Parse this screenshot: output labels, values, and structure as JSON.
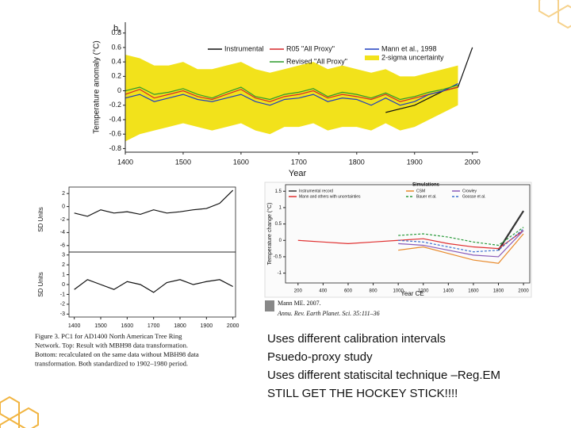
{
  "chart_data": [
    {
      "type": "line",
      "panel_label": "b,",
      "ylabel": "Temperature anomaly (°C)",
      "xlabel": "Year",
      "x": [
        1400,
        1425,
        1450,
        1475,
        1500,
        1525,
        1550,
        1575,
        1600,
        1625,
        1650,
        1675,
        1700,
        1725,
        1750,
        1775,
        1800,
        1825,
        1850,
        1875,
        1900,
        1925,
        1950,
        1975,
        2000
      ],
      "xlim": [
        1400,
        2010
      ],
      "xticks": [
        1400,
        1500,
        1600,
        1700,
        1800,
        1900,
        2000
      ],
      "ylim": [
        -0.85,
        0.95
      ],
      "yticks": [
        0.8,
        0.6,
        0.4,
        0.2,
        0,
        -0.2,
        -0.4,
        -0.6,
        -0.8
      ],
      "band": {
        "name": "2-sigma uncertainty",
        "color": "#f2e21b",
        "lower": [
          -0.7,
          -0.6,
          -0.55,
          -0.5,
          -0.45,
          -0.5,
          -0.55,
          -0.5,
          -0.45,
          -0.55,
          -0.6,
          -0.5,
          -0.5,
          -0.45,
          -0.55,
          -0.5,
          -0.5,
          -0.55,
          -0.45,
          -0.55,
          -0.5,
          -0.4,
          -0.3,
          -0.2,
          null
        ],
        "upper": [
          0.5,
          0.45,
          0.35,
          0.35,
          0.4,
          0.3,
          0.3,
          0.35,
          0.4,
          0.3,
          0.25,
          0.3,
          0.35,
          0.4,
          0.3,
          0.35,
          0.3,
          0.25,
          0.3,
          0.2,
          0.2,
          0.25,
          0.3,
          0.35,
          null
        ]
      },
      "series": [
        {
          "name": "Instrumental",
          "color": "#111111",
          "values": [
            null,
            null,
            null,
            null,
            null,
            null,
            null,
            null,
            null,
            null,
            null,
            null,
            null,
            null,
            null,
            null,
            null,
            null,
            -0.3,
            -0.25,
            -0.2,
            -0.1,
            0.0,
            0.05,
            0.6
          ]
        },
        {
          "name": "R05 \"All Proxy\"",
          "color": "#d62728",
          "values": [
            -0.05,
            0.02,
            -0.1,
            -0.05,
            0.0,
            -0.08,
            -0.12,
            -0.05,
            0.02,
            -0.1,
            -0.15,
            -0.08,
            -0.05,
            0.0,
            -0.1,
            -0.05,
            -0.08,
            -0.12,
            -0.05,
            -0.15,
            -0.1,
            -0.05,
            0.0,
            0.05,
            null
          ]
        },
        {
          "name": "Mann et al., 1998",
          "color": "#1f3fbf",
          "values": [
            -0.1,
            -0.05,
            -0.15,
            -0.1,
            -0.05,
            -0.12,
            -0.15,
            -0.1,
            -0.05,
            -0.15,
            -0.2,
            -0.12,
            -0.1,
            -0.05,
            -0.15,
            -0.1,
            -0.12,
            -0.2,
            -0.1,
            -0.2,
            -0.15,
            -0.05,
            0.0,
            0.1,
            null
          ]
        },
        {
          "name": "Revised \"All Proxy\"",
          "color": "#2c9a2c",
          "values": [
            0.0,
            0.05,
            -0.05,
            -0.02,
            0.03,
            -0.05,
            -0.1,
            -0.02,
            0.05,
            -0.08,
            -0.12,
            -0.05,
            -0.02,
            0.03,
            -0.08,
            -0.02,
            -0.05,
            -0.1,
            -0.03,
            -0.12,
            -0.08,
            -0.02,
            0.02,
            0.08,
            null
          ]
        }
      ]
    },
    {
      "type": "line",
      "ylabel": "SD Units",
      "x": [
        1400,
        1450,
        1500,
        1550,
        1600,
        1650,
        1700,
        1750,
        1800,
        1850,
        1900,
        1950,
        2000
      ],
      "xlim": [
        1380,
        2010
      ],
      "ylim": [
        -7,
        3
      ],
      "yticks": [
        2,
        0,
        -2,
        -4,
        -6
      ],
      "series": [
        {
          "color": "#111111",
          "values": [
            -1,
            -1.5,
            -0.5,
            -1,
            -0.8,
            -1.2,
            -0.5,
            -1,
            -0.8,
            -0.5,
            -0.3,
            0.5,
            2.5
          ]
        }
      ]
    },
    {
      "type": "line",
      "ylabel": "SD Units",
      "x": [
        1400,
        1450,
        1500,
        1550,
        1600,
        1650,
        1700,
        1750,
        1800,
        1850,
        1900,
        1950,
        2000
      ],
      "xlim": [
        1380,
        2010
      ],
      "xticks": [
        1400,
        1500,
        1600,
        1700,
        1800,
        1900,
        2000
      ],
      "ylim": [
        -3.3,
        3.3
      ],
      "yticks": [
        3,
        2,
        1,
        0,
        -1,
        -2,
        -3
      ],
      "series": [
        {
          "color": "#111111",
          "values": [
            -0.5,
            0.5,
            0,
            -0.5,
            0.3,
            0,
            -0.8,
            0.2,
            0.5,
            0,
            0.3,
            0.5,
            -0.2
          ]
        }
      ]
    },
    {
      "type": "line",
      "ylabel": "Temperature change (°C)",
      "xlabel": "Year CE",
      "legend_title": "Simulations",
      "x": [
        200,
        400,
        600,
        800,
        1000,
        1200,
        1400,
        1600,
        1800,
        2000
      ],
      "xlim": [
        100,
        2050
      ],
      "xticks": [
        200,
        400,
        600,
        800,
        1000,
        1200,
        1400,
        1600,
        1800,
        2000
      ],
      "ylim": [
        -1.3,
        1.7
      ],
      "yticks": [
        1.5,
        1,
        0.5,
        0,
        -0.5,
        -1
      ],
      "series": [
        {
          "name": "Instrumental record",
          "color": "#333333",
          "values": [
            null,
            null,
            null,
            null,
            null,
            null,
            null,
            null,
            -0.3,
            0.9
          ]
        },
        {
          "name": "Mann and others with uncertainties",
          "color": "#e03030",
          "values": [
            0.0,
            -0.05,
            -0.1,
            -0.05,
            0.0,
            0.05,
            -0.1,
            -0.2,
            -0.25,
            0.3
          ]
        },
        {
          "name": "CSM",
          "color": "#e8892a",
          "values": [
            null,
            null,
            null,
            null,
            -0.3,
            -0.2,
            -0.4,
            -0.6,
            -0.7,
            0.2
          ]
        },
        {
          "name": "Crowley",
          "color": "#8a5bb8",
          "values": [
            null,
            null,
            null,
            null,
            -0.1,
            -0.15,
            -0.3,
            -0.45,
            -0.5,
            0.3
          ]
        },
        {
          "name": "Bauer et al.",
          "color": "#2a9a3a",
          "dashed": true,
          "values": [
            null,
            null,
            null,
            null,
            0.15,
            0.2,
            0.1,
            -0.05,
            -0.15,
            0.4
          ]
        },
        {
          "name": "Goosse et al.",
          "color": "#3b6fd0",
          "dashed": true,
          "values": [
            null,
            null,
            null,
            null,
            0.0,
            -0.05,
            -0.2,
            -0.35,
            -0.3,
            0.35
          ]
        }
      ]
    }
  ],
  "caption_lines": [
    "Figure 3.  PC1 for AD1400 North American Tree Ring",
    "Network.  Top: Result with MBH98 data transformation.",
    "Bottom: recalculated on the same data without MBH98 data",
    "transformation.  Both standardized to 1902–1980 period."
  ],
  "citation": [
    "Mann ME. 2007.",
    "Annu. Rev. Earth Planet. Sci. 35:111–36"
  ],
  "bullets": [
    "Uses different calibration intervals",
    "Psuedo-proxy study",
    "Uses different statiscital technique –Reg.EM",
    "STILL GET THE HOCKEY STICK!!!!"
  ]
}
